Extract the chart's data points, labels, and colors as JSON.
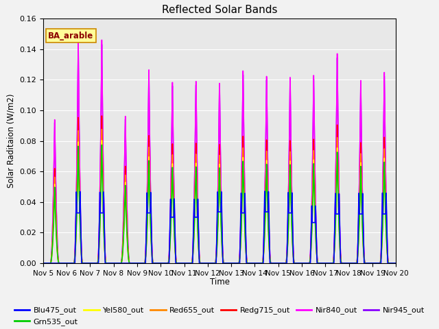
{
  "title": "Reflected Solar Bands",
  "xlabel": "Time",
  "ylabel": "Solar Raditaion (W/m2)",
  "ylim": [
    0,
    0.16
  ],
  "annotation": "BA_arable",
  "series_order": [
    "Blu475_out",
    "Grn535_out",
    "Yel580_out",
    "Red655_out",
    "Redg715_out",
    "Nir840_out",
    "Nir945_out"
  ],
  "series": {
    "Blu475_out": {
      "color": "#0000ff",
      "lw": 1.2
    },
    "Grn535_out": {
      "color": "#00cc00",
      "lw": 1.2
    },
    "Yel580_out": {
      "color": "#ffff00",
      "lw": 1.2
    },
    "Red655_out": {
      "color": "#ff8800",
      "lw": 1.2
    },
    "Redg715_out": {
      "color": "#ff0000",
      "lw": 1.2
    },
    "Nir840_out": {
      "color": "#ff00ff",
      "lw": 1.2
    },
    "Nir945_out": {
      "color": "#8800ff",
      "lw": 1.2
    }
  },
  "bg_color": "#e8e8e8",
  "plot_bg": "#e8e8e8",
  "grid_color": "#ffffff",
  "fig_color": "#f2f2f2",
  "xtick_labels": [
    "Nov 5",
    "Nov 6",
    "Nov 7",
    "Nov 8",
    "Nov 9",
    "Nov 10",
    "Nov 11",
    "Nov 12",
    "Nov 13",
    "Nov 14",
    "Nov 15",
    "Nov 16",
    "Nov 17",
    "Nov 18",
    "Nov 19",
    "Nov 20"
  ],
  "xtick_positions": [
    0,
    1,
    2,
    3,
    4,
    5,
    6,
    7,
    8,
    9,
    10,
    11,
    12,
    13,
    14,
    15
  ],
  "nir840_peaks": [
    0.094,
    0.145,
    0.147,
    0.097,
    0.128,
    0.12,
    0.121,
    0.12,
    0.128,
    0.124,
    0.123,
    0.124,
    0.138,
    0.12,
    0.125
  ],
  "blu475_peaks": [
    0.0,
    0.047,
    0.047,
    0.0,
    0.047,
    0.043,
    0.043,
    0.048,
    0.047,
    0.048,
    0.047,
    0.038,
    0.046,
    0.046,
    0.046
  ],
  "legend_ncol": 6
}
